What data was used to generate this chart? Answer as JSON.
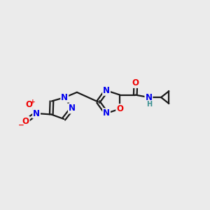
{
  "bg_color": "#ebebeb",
  "bond_color": "#1a1a1a",
  "N_color": "#0000ee",
  "O_color": "#ee0000",
  "NH_color": "#3a9090",
  "line_width": 1.6,
  "font_size_atom": 8.5,
  "font_size_small": 7.0,
  "xlim": [
    0,
    10
  ],
  "ylim": [
    2,
    8
  ]
}
